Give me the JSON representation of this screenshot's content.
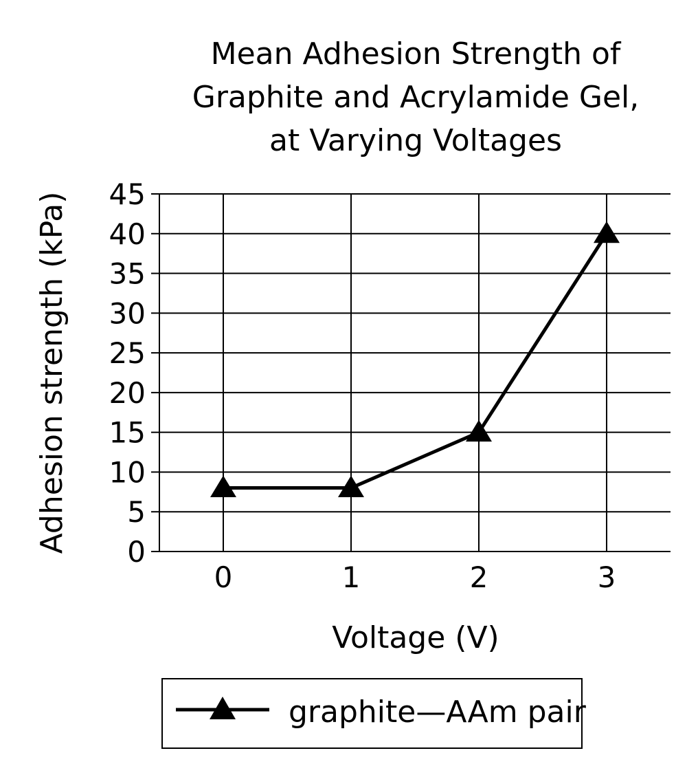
{
  "chart_data": {
    "type": "line",
    "title_lines": [
      "Mean Adhesion Strength of",
      "Graphite and Acrylamide Gel,",
      "at Varying Voltages"
    ],
    "xlabel": "Voltage (V)",
    "ylabel": "Adhesion strength (kPa)",
    "categories": [
      "0",
      "1",
      "2",
      "3"
    ],
    "x_tick_labels": [
      "0",
      "1",
      "2",
      "3"
    ],
    "y_tick_labels": [
      "0",
      "5",
      "10",
      "15",
      "20",
      "25",
      "30",
      "35",
      "40",
      "45"
    ],
    "ylim": [
      0,
      45
    ],
    "y_step": 5,
    "grid": true,
    "legend_position": "bottom",
    "series": [
      {
        "name": "graphite—AAm pair",
        "marker": "triangle",
        "color": "#000000",
        "values": [
          8,
          8,
          15,
          40
        ]
      }
    ]
  }
}
